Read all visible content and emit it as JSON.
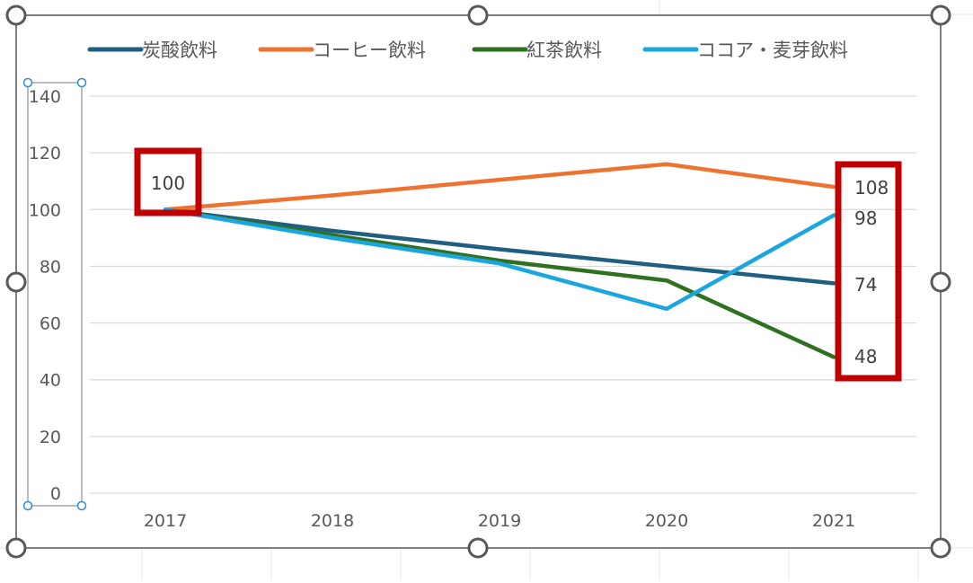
{
  "chart_data": {
    "type": "line",
    "categories": [
      "2017",
      "2018",
      "2019",
      "2020",
      "2021"
    ],
    "series": [
      {
        "name": "炭酸飲料",
        "color": "#1f5f82",
        "values": [
          100,
          92.5,
          86,
          80,
          74
        ]
      },
      {
        "name": "コーヒー飲料",
        "color": "#ee7330",
        "values": [
          100,
          105,
          110.5,
          116,
          108
        ]
      },
      {
        "name": "紅茶飲料",
        "color": "#2f7120",
        "values": [
          100,
          91,
          82,
          75,
          48
        ]
      },
      {
        "name": "ココア・麦芽飲料",
        "color": "#1ca6e0",
        "values": [
          100,
          90,
          81,
          65,
          98
        ]
      }
    ],
    "y_ticks": [
      "0",
      "20",
      "40",
      "60",
      "80",
      "100",
      "120",
      "140"
    ],
    "ylim": [
      0,
      140
    ],
    "grid": true,
    "legend_position": "top",
    "data_labels": [
      {
        "category": "2017",
        "value": "100"
      },
      {
        "category": "2021",
        "value": "108"
      },
      {
        "category": "2021",
        "value": "98"
      },
      {
        "category": "2021",
        "value": "74"
      },
      {
        "category": "2021",
        "value": "48"
      }
    ],
    "highlight_color": "#c00000"
  }
}
